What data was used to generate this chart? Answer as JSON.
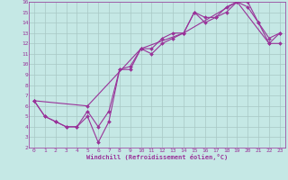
{
  "xlabel": "Windchill (Refroidissement éolien,°C)",
  "xlim": [
    -0.5,
    23.5
  ],
  "ylim": [
    2,
    16
  ],
  "xticks": [
    0,
    1,
    2,
    3,
    4,
    5,
    6,
    7,
    8,
    9,
    10,
    11,
    12,
    13,
    14,
    15,
    16,
    17,
    18,
    19,
    20,
    21,
    22,
    23
  ],
  "yticks": [
    2,
    3,
    4,
    5,
    6,
    7,
    8,
    9,
    10,
    11,
    12,
    13,
    14,
    15,
    16
  ],
  "bg_color": "#c5e8e5",
  "grid_color": "#a8c8c5",
  "line_color": "#993399",
  "line1_x": [
    0,
    1,
    2,
    3,
    4,
    5,
    6,
    7,
    8,
    9,
    10,
    11,
    12,
    13,
    14,
    15,
    16,
    17,
    18,
    19,
    20,
    21,
    22,
    23
  ],
  "line1_y": [
    6.5,
    5.0,
    4.5,
    4.0,
    4.0,
    5.0,
    2.5,
    4.5,
    9.5,
    9.5,
    11.5,
    11.0,
    12.0,
    12.5,
    13.0,
    15.0,
    14.0,
    14.5,
    15.0,
    16.0,
    16.0,
    14.0,
    12.0,
    12.0
  ],
  "line2_x": [
    0,
    1,
    2,
    3,
    4,
    5,
    6,
    7,
    8,
    9,
    10,
    11,
    12,
    13,
    14,
    15,
    16,
    17,
    18,
    19,
    20,
    21,
    22,
    23
  ],
  "line2_y": [
    6.5,
    5.0,
    4.5,
    4.0,
    4.0,
    5.5,
    4.0,
    5.5,
    9.5,
    9.8,
    11.5,
    11.5,
    12.5,
    13.0,
    13.0,
    15.0,
    14.5,
    14.5,
    15.5,
    16.0,
    15.5,
    14.0,
    12.5,
    13.0
  ],
  "line3_x": [
    0,
    5,
    10,
    14,
    19,
    22,
    23
  ],
  "line3_y": [
    6.5,
    6.0,
    11.5,
    13.0,
    16.0,
    12.0,
    13.0
  ]
}
